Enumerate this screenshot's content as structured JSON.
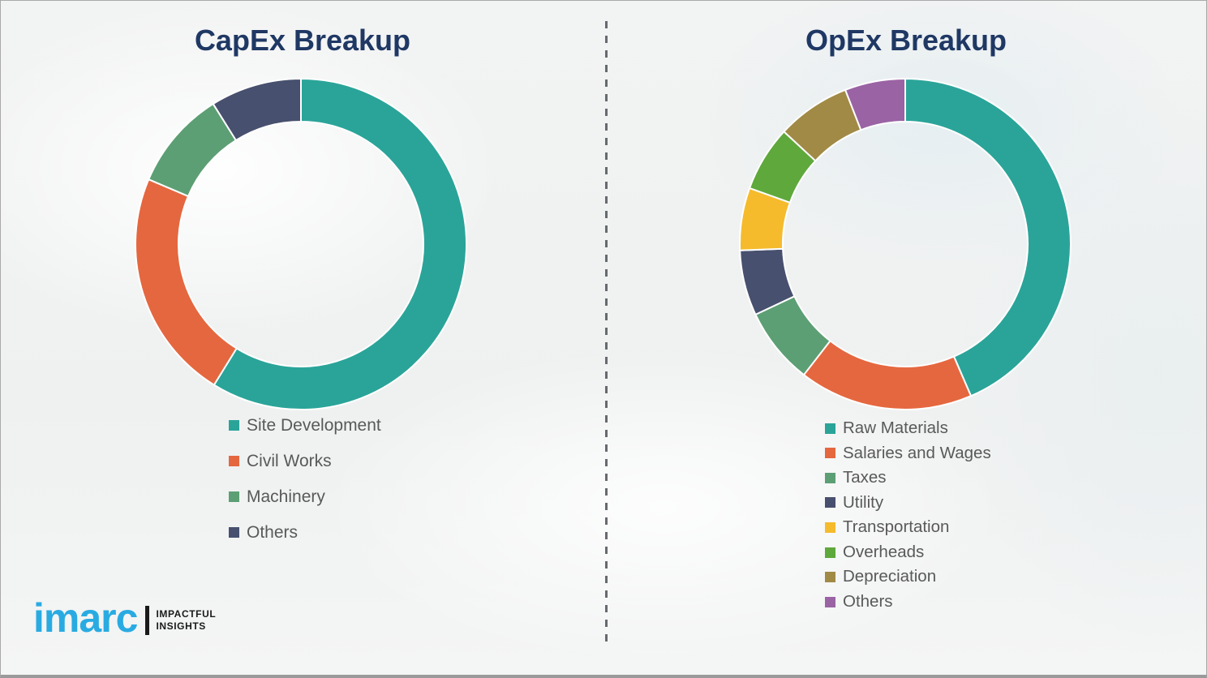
{
  "titles": {
    "left": "CapEx Breakup",
    "right": "OpEx Breakup",
    "title_color": "#1f3864"
  },
  "divider": {
    "style": "vertical-dashed",
    "color": "#666a6e"
  },
  "legend_text_color": "#595959",
  "logo": {
    "brand": "imarc",
    "tagline_line1": "IMPACTFUL",
    "tagline_line2": "INSIGHTS",
    "brand_color": "#29abe2"
  },
  "chart_data": [
    {
      "type": "pie",
      "subtype": "donut",
      "title": "CapEx Breakup",
      "start_angle_deg": 0,
      "direction": "clockwise",
      "legend_position": "below-left",
      "data_labels_shown": false,
      "categories": [
        "Site Development",
        "Civil Works",
        "Machinery",
        "Others"
      ],
      "values": [
        58.8,
        22.6,
        9.7,
        8.9
      ],
      "values_unit": "percent (estimated from arc angles; no labels shown)",
      "colors": [
        "#2aa499",
        "#e5673f",
        "#5c9f74",
        "#47506e"
      ]
    },
    {
      "type": "pie",
      "subtype": "donut",
      "title": "OpEx Breakup",
      "start_angle_deg": 0,
      "direction": "clockwise",
      "legend_position": "below-left",
      "data_labels_shown": false,
      "categories": [
        "Raw Materials",
        "Salaries and Wages",
        "Taxes",
        "Utility",
        "Transportation",
        "Overheads",
        "Depreciation",
        "Others"
      ],
      "values": [
        43.5,
        17.0,
        7.5,
        6.4,
        6.1,
        6.4,
        7.2,
        5.9
      ],
      "values_unit": "percent (estimated from arc angles; no labels shown)",
      "colors": [
        "#2aa499",
        "#e5673f",
        "#5c9f74",
        "#47506e",
        "#f5bb2d",
        "#5fa83c",
        "#a18a46",
        "#9a63a4"
      ]
    }
  ]
}
